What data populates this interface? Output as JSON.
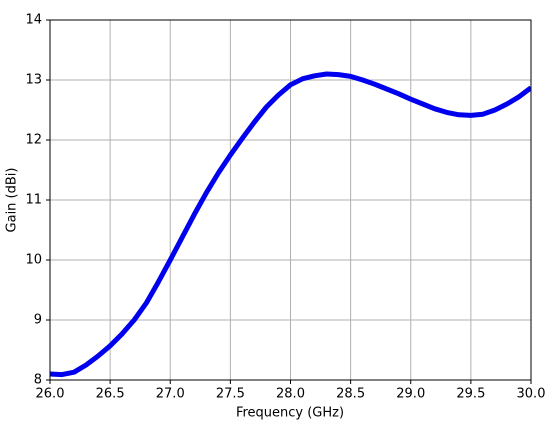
{
  "chart_data": {
    "type": "line",
    "x_label": "Frequency (GHz)",
    "y_label": "Gain (dBi)",
    "x": [
      26.0,
      26.1,
      26.2,
      26.3,
      26.4,
      26.5,
      26.6,
      26.7,
      26.8,
      26.9,
      27.0,
      27.1,
      27.2,
      27.3,
      27.4,
      27.5,
      27.6,
      27.7,
      27.8,
      27.9,
      28.0,
      28.1,
      28.2,
      28.3,
      28.4,
      28.5,
      28.6,
      28.7,
      28.8,
      28.9,
      29.0,
      29.1,
      29.2,
      29.3,
      29.4,
      29.5,
      29.6,
      29.7,
      29.8,
      29.9,
      30.0
    ],
    "series": [
      {
        "color": "#0000ee",
        "values": [
          8.1,
          8.09,
          8.13,
          8.25,
          8.4,
          8.57,
          8.77,
          9.0,
          9.28,
          9.63,
          10.0,
          10.38,
          10.76,
          11.12,
          11.45,
          11.75,
          12.03,
          12.3,
          12.55,
          12.75,
          12.92,
          13.02,
          13.07,
          13.1,
          13.09,
          13.06,
          13.0,
          12.93,
          12.85,
          12.77,
          12.68,
          12.6,
          12.52,
          12.46,
          12.42,
          12.41,
          12.43,
          12.5,
          12.6,
          12.72,
          12.87
        ]
      }
    ],
    "xlim": [
      26,
      30
    ],
    "xticks": [
      {
        "value": 26,
        "label": "26.0"
      },
      26.5,
      {
        "value": 27,
        "label": "27.0"
      },
      27.5,
      {
        "value": 28,
        "label": "28.0"
      },
      28.5,
      {
        "value": 29,
        "label": "29.0"
      },
      29.5,
      {
        "value": 30,
        "label": "30.0"
      }
    ],
    "ylim": [
      8,
      14
    ],
    "yticks": [
      8,
      9,
      10,
      11,
      12,
      13,
      14
    ],
    "grid": true
  }
}
